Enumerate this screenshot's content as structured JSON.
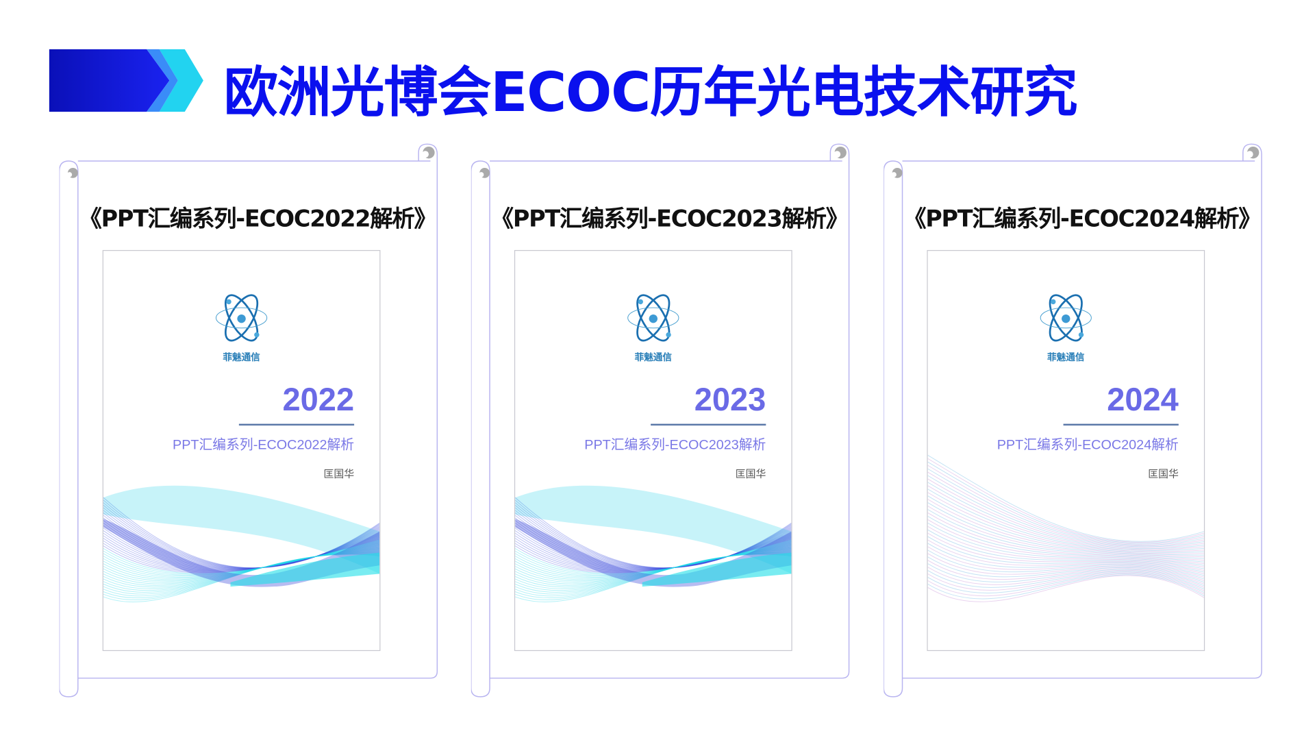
{
  "header": {
    "title": "欧洲光博会ECOC历年光电技术研究"
  },
  "colors": {
    "title": "#0a10ee",
    "accent_cyan": "#22d3f0",
    "year": "#6a6ae6",
    "frame": "#b8b4f0"
  },
  "cards": [
    {
      "title": "《PPT汇编系列-ECOC2022解析》",
      "brand": "菲魅通信",
      "year": "2022",
      "subtitle": "PPT汇编系列-ECOC2022解析",
      "author": "匡国华"
    },
    {
      "title": "《PPT汇编系列-ECOC2023解析》",
      "brand": "菲魅通信",
      "year": "2023",
      "subtitle": "PPT汇编系列-ECOC2023解析",
      "author": "匡国华"
    },
    {
      "title": "《PPT汇编系列-ECOC2024解析》",
      "brand": "菲魅通信",
      "year": "2024",
      "subtitle": "PPT汇编系列-ECOC2024解析",
      "author": "匡国华"
    }
  ]
}
